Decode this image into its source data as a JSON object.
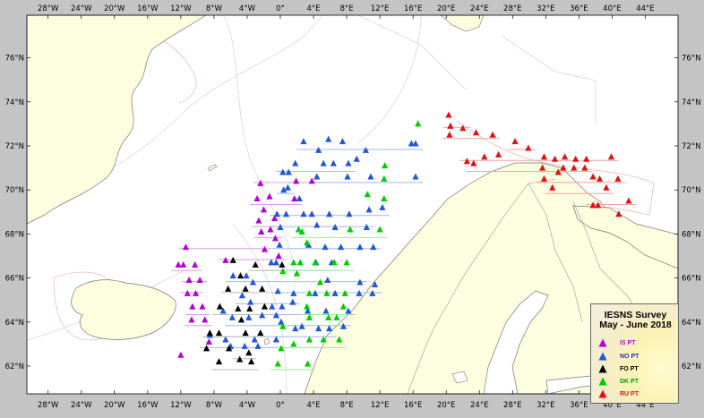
{
  "map": {
    "lon_labels": [
      "28°W",
      "24°W",
      "20°W",
      "16°W",
      "12°W",
      "8°W",
      "4°W",
      "0°",
      "4°E",
      "8°E",
      "12°E",
      "16°E",
      "20°E",
      "24°E",
      "28°E",
      "32°E",
      "36°E",
      "40°E",
      "44°E"
    ],
    "lat_labels": [
      "62°N",
      "64°N",
      "66°N",
      "68°N",
      "70°N",
      "72°N",
      "74°N",
      "76°N"
    ],
    "colors": {
      "land": "#fdfde0",
      "sea": "#ffffff",
      "frame": "#c4c4c4",
      "coast": "#777777"
    }
  },
  "legend": {
    "title_line1": "IESNS Survey",
    "title_line2": "May - June 2018",
    "items": [
      {
        "label": "IS PT",
        "color": "#b400d2"
      },
      {
        "label": "NO PT",
        "color": "#2255dd"
      },
      {
        "label": "FO PT",
        "color": "#000000"
      },
      {
        "label": "DK PT",
        "color": "#00cc00"
      },
      {
        "label": "RU PT",
        "color": "#e01010"
      }
    ]
  },
  "stations": {
    "IS PT": [
      [
        -11.7,
        66.6
      ],
      [
        -12.3,
        66.6
      ],
      [
        -11.4,
        67.4
      ],
      [
        -10.3,
        66.6
      ],
      [
        -11,
        65.9
      ],
      [
        -9.7,
        65.9
      ],
      [
        -10.2,
        65.3
      ],
      [
        -11.2,
        65.3
      ],
      [
        -9.4,
        64.7
      ],
      [
        -10.6,
        64.7
      ],
      [
        -9.1,
        64.1
      ],
      [
        -10.7,
        64.1
      ],
      [
        -8.6,
        63.1
      ],
      [
        -12,
        62.5
      ],
      [
        -2.4,
        70.3
      ],
      [
        -2.8,
        69.6
      ],
      [
        -1.3,
        69.7
      ],
      [
        -2,
        69.1
      ],
      [
        -0.7,
        68.7
      ],
      [
        -2.6,
        68.6
      ],
      [
        -2.3,
        68.1
      ],
      [
        -1.2,
        68.2
      ],
      [
        -0.6,
        67.8
      ],
      [
        -1.9,
        67.3
      ],
      [
        -6.6,
        66.8
      ],
      [
        -0.2,
        67
      ],
      [
        3.8,
        70.4
      ],
      [
        1.9,
        70.4
      ],
      [
        1.7,
        69.6
      ]
    ],
    "NO PT": [
      [
        2.8,
        72.2
      ],
      [
        5.8,
        72.3
      ],
      [
        7.5,
        72.2
      ],
      [
        4.6,
        71.8
      ],
      [
        5.2,
        71.2
      ],
      [
        6.4,
        71.2
      ],
      [
        8.2,
        71.2
      ],
      [
        9.2,
        71.4
      ],
      [
        10.3,
        71.8
      ],
      [
        15.8,
        72.1
      ],
      [
        16.3,
        72.1
      ],
      [
        1.8,
        71.2
      ],
      [
        0.3,
        70.8
      ],
      [
        1,
        70.8
      ],
      [
        4.4,
        70.6
      ],
      [
        8.1,
        70.6
      ],
      [
        10.9,
        70.6
      ],
      [
        16.3,
        70.6
      ],
      [
        0.9,
        70.1
      ],
      [
        0.4,
        70
      ],
      [
        2.3,
        69.6
      ],
      [
        -0.4,
        68.9
      ],
      [
        0.7,
        68.9
      ],
      [
        2.8,
        68.9
      ],
      [
        3.8,
        68.9
      ],
      [
        5.9,
        68.9
      ],
      [
        8.3,
        68.9
      ],
      [
        10.7,
        69.1
      ],
      [
        12.3,
        69.2
      ],
      [
        0,
        68.3
      ],
      [
        4.4,
        68.4
      ],
      [
        6.6,
        68.3
      ],
      [
        10.4,
        68.3
      ],
      [
        -0.1,
        67.5
      ],
      [
        3.4,
        67.5
      ],
      [
        5.4,
        67.4
      ],
      [
        7.3,
        67.4
      ],
      [
        9.6,
        67.4
      ],
      [
        11.2,
        67.4
      ],
      [
        -0.5,
        66.7
      ],
      [
        -1.1,
        66.7
      ],
      [
        4.3,
        66.7
      ],
      [
        6.2,
        66.7
      ],
      [
        -4.1,
        66.1
      ],
      [
        -5.7,
        66.1
      ],
      [
        -3.3,
        65.8
      ],
      [
        5.7,
        65.9
      ],
      [
        9.6,
        65.8
      ],
      [
        11.4,
        65.7
      ],
      [
        -0.3,
        65.4
      ],
      [
        1.6,
        65.3
      ],
      [
        4.2,
        65.3
      ],
      [
        6.6,
        65.3
      ],
      [
        9.5,
        65.3
      ],
      [
        11.1,
        65.3
      ],
      [
        -4.6,
        65.2
      ],
      [
        -3.6,
        64.9
      ],
      [
        0.2,
        64.7
      ],
      [
        -1,
        64.7
      ],
      [
        1.5,
        64.9
      ],
      [
        3.3,
        64.5
      ],
      [
        5.5,
        64.5
      ],
      [
        8.2,
        64.5
      ],
      [
        -6.9,
        64.5
      ],
      [
        -5.8,
        64.2
      ],
      [
        -3.8,
        64.2
      ],
      [
        -2.2,
        64.3
      ],
      [
        -0.5,
        64.3
      ],
      [
        0.1,
        64
      ],
      [
        1.8,
        63.7
      ],
      [
        2.6,
        63.8
      ],
      [
        4.6,
        63.7
      ],
      [
        5.9,
        63.7
      ],
      [
        7.6,
        63.8
      ],
      [
        -0.5,
        63.2
      ],
      [
        -3.1,
        63.2
      ],
      [
        -6.6,
        63.2
      ],
      [
        -8.5,
        63.4
      ],
      [
        -6,
        62.9
      ],
      [
        -4.3,
        62.9
      ],
      [
        -2.7,
        62.9
      ]
    ],
    "FO PT": [
      [
        -5.7,
        66.8
      ],
      [
        -3,
        66.6
      ],
      [
        -4.8,
        66.1
      ],
      [
        0.2,
        66.6
      ],
      [
        -4.2,
        65.5
      ],
      [
        -2.2,
        65.5
      ],
      [
        -6.3,
        65.5
      ],
      [
        -7.3,
        64.7
      ],
      [
        -5.1,
        64.6
      ],
      [
        -3.7,
        64.6
      ],
      [
        -1.9,
        64.7
      ],
      [
        -4.7,
        64.1
      ],
      [
        -4.2,
        63.5
      ],
      [
        -7.4,
        63.5
      ],
      [
        -8.5,
        63.5
      ],
      [
        -2.4,
        63.5
      ],
      [
        -8.9,
        62.8
      ],
      [
        -6.2,
        62.8
      ],
      [
        -3.8,
        62.6
      ],
      [
        -7.4,
        62.2
      ],
      [
        -3.5,
        62.2
      ],
      [
        -4.9,
        62.3
      ]
    ],
    "DK PT": [
      [
        16.6,
        73
      ],
      [
        12.6,
        71.1
      ],
      [
        12.5,
        70.5
      ],
      [
        10.5,
        69.8
      ],
      [
        12.5,
        69.6
      ],
      [
        2.6,
        68.1
      ],
      [
        2.2,
        68.2
      ],
      [
        8.4,
        68.2
      ],
      [
        12,
        68.2
      ],
      [
        3.2,
        67.6
      ],
      [
        1.6,
        66.7
      ],
      [
        2.4,
        66.7
      ],
      [
        4.2,
        66.7
      ],
      [
        6.5,
        66.7
      ],
      [
        8,
        66.7
      ],
      [
        0.3,
        66.3
      ],
      [
        2,
        66.2
      ],
      [
        4.8,
        65.8
      ],
      [
        3.5,
        65.3
      ],
      [
        5.6,
        65.3
      ],
      [
        7.8,
        65.3
      ],
      [
        3.2,
        64.7
      ],
      [
        7.6,
        64.7
      ],
      [
        3.5,
        64.2
      ],
      [
        5.8,
        64.2
      ],
      [
        6.8,
        64.2
      ],
      [
        0.3,
        63.8
      ],
      [
        3.5,
        63.2
      ],
      [
        5.2,
        63.2
      ],
      [
        7.1,
        63.2
      ],
      [
        1.6,
        63
      ],
      [
        0.1,
        62.8
      ],
      [
        3.3,
        62.1
      ],
      [
        -0.3,
        62.1
      ]
    ],
    "RU PT": [
      [
        20.3,
        73.4
      ],
      [
        20.5,
        72.9
      ],
      [
        22,
        72.8
      ],
      [
        23.6,
        72.6
      ],
      [
        25.6,
        72.5
      ],
      [
        20.4,
        72.5
      ],
      [
        28.3,
        72.2
      ],
      [
        29.9,
        71.9
      ],
      [
        26.3,
        71.6
      ],
      [
        24.6,
        71.5
      ],
      [
        23.3,
        71.2
      ],
      [
        22.5,
        71.3
      ],
      [
        31.8,
        71.5
      ],
      [
        33.1,
        71.4
      ],
      [
        34.3,
        71.5
      ],
      [
        35.6,
        71.4
      ],
      [
        36.9,
        71.4
      ],
      [
        39.9,
        71.5
      ],
      [
        36.7,
        71
      ],
      [
        35.4,
        71
      ],
      [
        34.1,
        71
      ],
      [
        33.5,
        70.8
      ],
      [
        31.6,
        71
      ],
      [
        31.8,
        70.5
      ],
      [
        37.7,
        70.6
      ],
      [
        38.5,
        70.5
      ],
      [
        40.7,
        70.5
      ],
      [
        32.8,
        70.1
      ],
      [
        39.3,
        70.1
      ],
      [
        37.7,
        69.3
      ],
      [
        38.3,
        69.3
      ],
      [
        40.8,
        68.9
      ],
      [
        42,
        69.5
      ]
    ]
  }
}
